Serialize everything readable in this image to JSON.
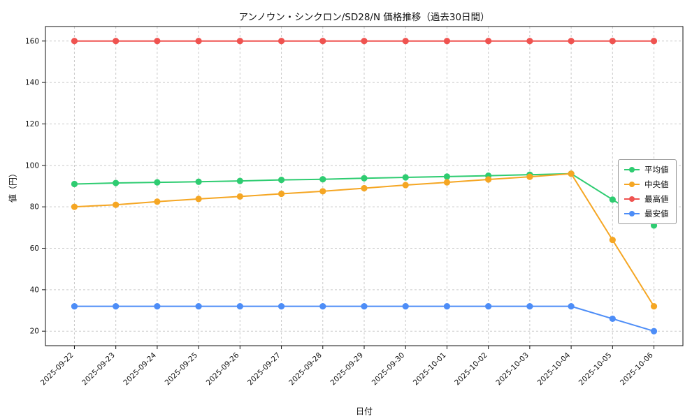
{
  "title": "アンノウン・シンクロン/SD28/N 価格推移（過去30日間）",
  "xlabel": "日付",
  "ylabel": "値（円）",
  "chart_data": {
    "type": "line",
    "categories": [
      "2025-09-22",
      "2025-09-23",
      "2025-09-24",
      "2025-09-25",
      "2025-09-26",
      "2025-09-27",
      "2025-09-28",
      "2025-09-29",
      "2025-09-30",
      "2025-10-01",
      "2025-10-02",
      "2025-10-03",
      "2025-10-04",
      "2025-10-05",
      "2025-10-06"
    ],
    "series": [
      {
        "name": "平均値",
        "color": "#2ecc71",
        "values": [
          91,
          91.5,
          91.8,
          92.1,
          92.5,
          93,
          93.3,
          93.8,
          94.2,
          94.6,
          95,
          95.5,
          96,
          83.5,
          71
        ]
      },
      {
        "name": "中央値",
        "color": "#f5a623",
        "values": [
          80,
          81,
          82.5,
          83.8,
          85,
          86.3,
          87.5,
          89,
          90.5,
          91.8,
          93.2,
          94.5,
          96,
          64,
          32
        ]
      },
      {
        "name": "最高値",
        "color": "#ef5350",
        "values": [
          160,
          160,
          160,
          160,
          160,
          160,
          160,
          160,
          160,
          160,
          160,
          160,
          160,
          160,
          160
        ]
      },
      {
        "name": "最安値",
        "color": "#4d8df7",
        "values": [
          32,
          32,
          32,
          32,
          32,
          32,
          32,
          32,
          32,
          32,
          32,
          32,
          32,
          26,
          20
        ]
      }
    ],
    "yticks": [
      20,
      40,
      60,
      80,
      100,
      120,
      140,
      160
    ],
    "ylim": [
      13,
      167
    ],
    "grid": true,
    "grid_style": "dashed",
    "legend_position": "right"
  }
}
